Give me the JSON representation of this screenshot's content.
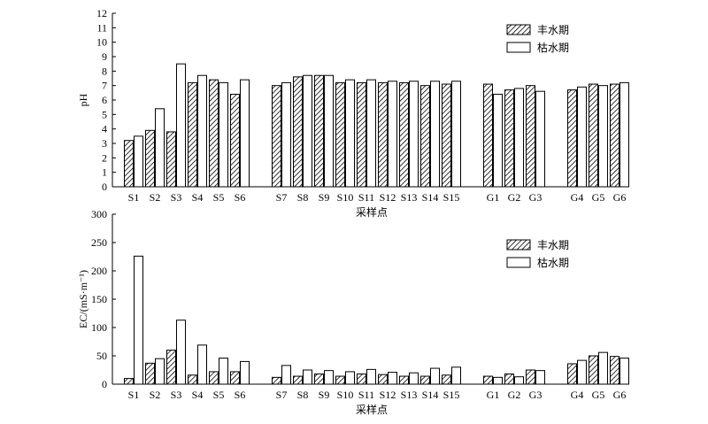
{
  "chart_data": [
    {
      "type": "bar",
      "ylabel": "pH",
      "xlabel": "采样点",
      "ylim": [
        0,
        12
      ],
      "yticks": [
        0,
        1,
        2,
        3,
        4,
        5,
        6,
        7,
        8,
        9,
        10,
        11,
        12
      ],
      "legend_position": "top-right",
      "categories": [
        "S1",
        "S2",
        "S3",
        "S4",
        "S5",
        "S6",
        "S7",
        "S8",
        "S9",
        "S10",
        "S11",
        "S12",
        "S13",
        "S14",
        "S15",
        "G1",
        "G2",
        "G3",
        "G4",
        "G5",
        "G6"
      ],
      "series": [
        {
          "name": "丰水期",
          "pattern": "hatched",
          "values": [
            3.2,
            3.9,
            3.8,
            7.2,
            7.4,
            6.4,
            7.0,
            7.6,
            7.7,
            7.2,
            7.2,
            7.2,
            7.2,
            7.0,
            7.1,
            7.1,
            6.7,
            7.0,
            6.7,
            7.1,
            7.1
          ]
        },
        {
          "name": "枯水期",
          "pattern": "open",
          "values": [
            3.5,
            5.4,
            8.5,
            7.7,
            7.2,
            7.4,
            7.2,
            7.7,
            7.7,
            7.4,
            7.4,
            7.3,
            7.3,
            7.3,
            7.3,
            6.4,
            6.8,
            6.6,
            6.9,
            7.0,
            7.2
          ]
        }
      ]
    },
    {
      "type": "bar",
      "ylabel": "EC/(mS·m⁻¹)",
      "xlabel": "采样点",
      "ylim": [
        0,
        300
      ],
      "yticks": [
        0,
        50,
        100,
        150,
        200,
        250,
        300
      ],
      "legend_position": "top-right",
      "categories": [
        "S1",
        "S2",
        "S3",
        "S4",
        "S5",
        "S6",
        "S7",
        "S8",
        "S9",
        "S10",
        "S11",
        "S12",
        "S13",
        "S14",
        "S15",
        "G1",
        "G2",
        "G3",
        "G4",
        "G5",
        "G6"
      ],
      "series": [
        {
          "name": "丰水期",
          "pattern": "hatched",
          "values": [
            10,
            37,
            60,
            16,
            22,
            22,
            12,
            14,
            18,
            14,
            18,
            17,
            14,
            14,
            16,
            14,
            18,
            25,
            36,
            50,
            49
          ]
        },
        {
          "name": "枯水期",
          "pattern": "open",
          "values": [
            226,
            45,
            113,
            69,
            46,
            40,
            33,
            25,
            24,
            22,
            26,
            21,
            20,
            28,
            30,
            12,
            13,
            24,
            42,
            56,
            46
          ]
        }
      ]
    }
  ]
}
